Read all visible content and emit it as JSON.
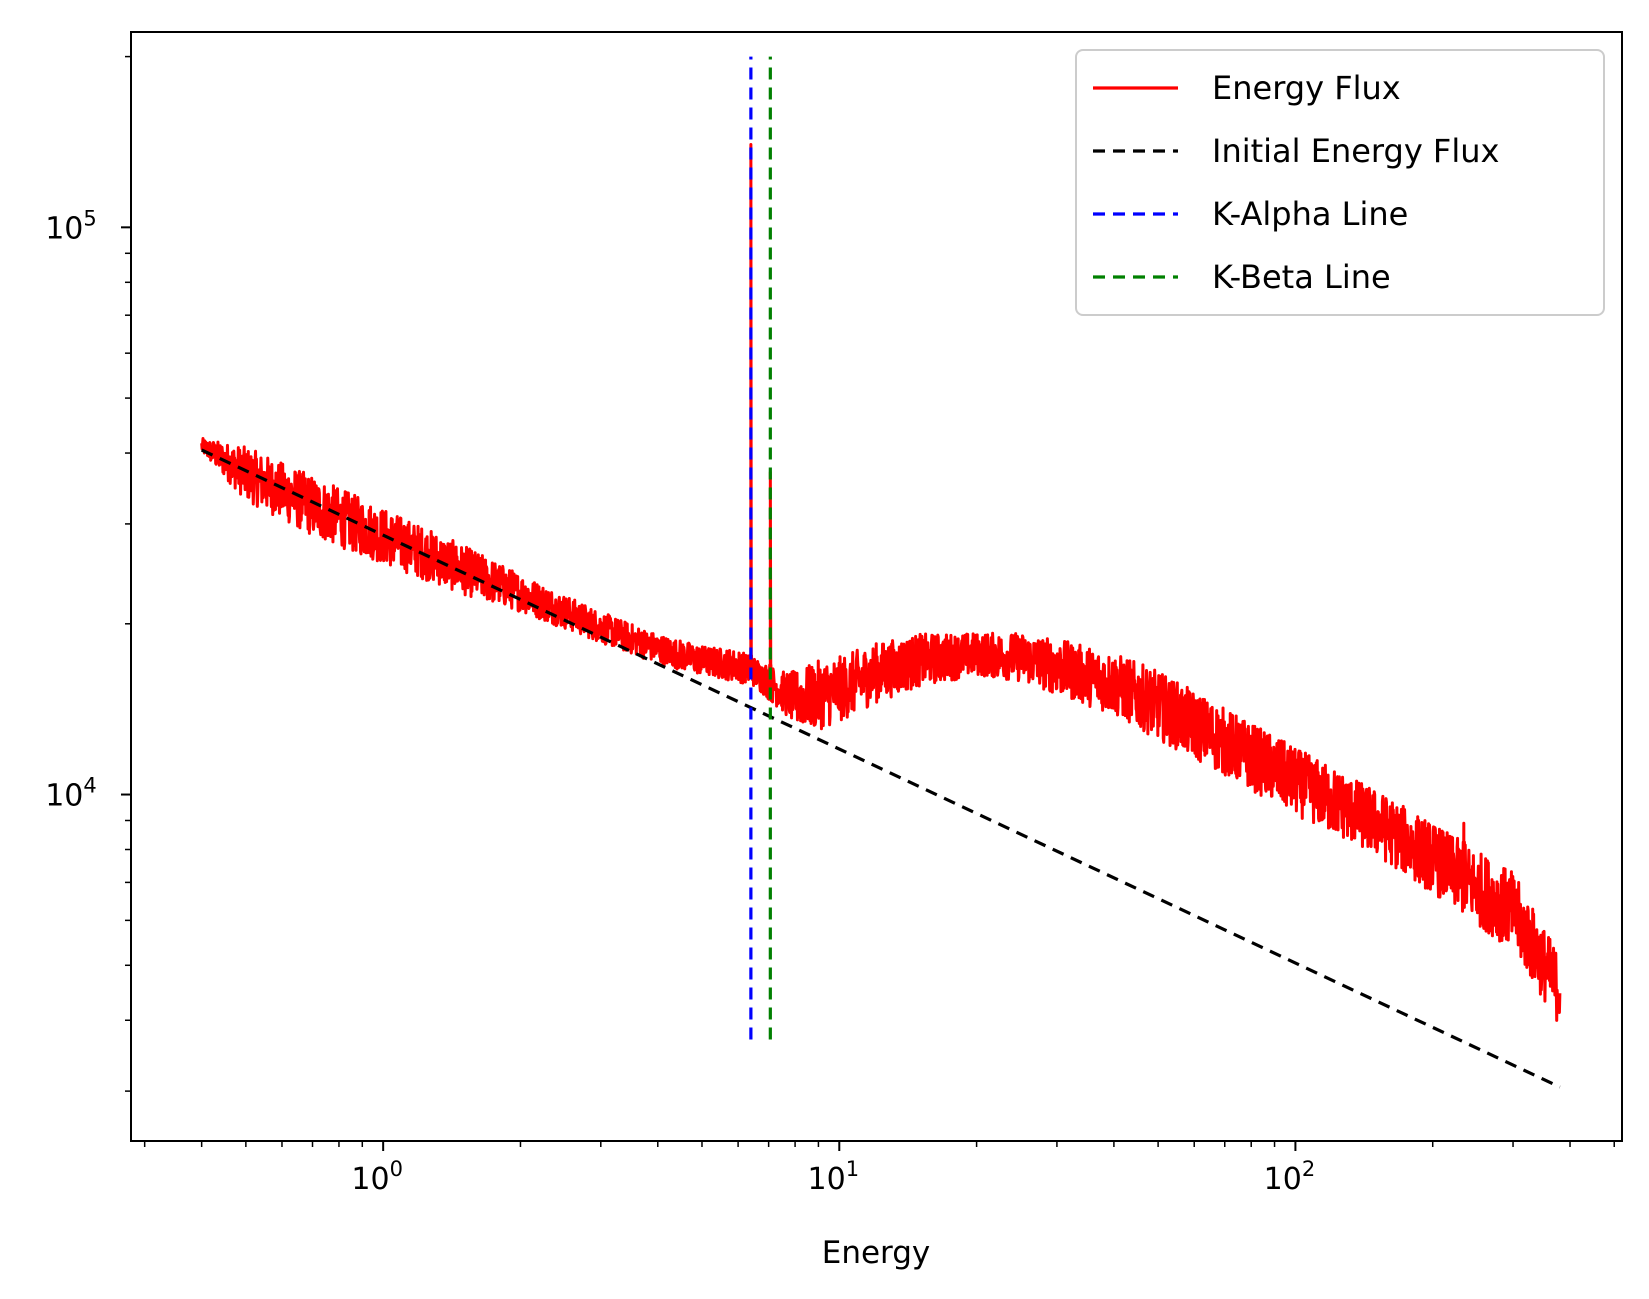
{
  "chart_data": {
    "type": "line",
    "xlabel": "Energy",
    "ylabel": "",
    "xscale": "log",
    "yscale": "log",
    "xlim": [
      0.28,
      520
    ],
    "ylim": [
      2450,
      221000
    ],
    "grid": false,
    "legend_position": "top-right",
    "x_ticks": [
      {
        "value": 1,
        "base": "10",
        "exp": "0"
      },
      {
        "value": 10,
        "base": "10",
        "exp": "1"
      },
      {
        "value": 100,
        "base": "10",
        "exp": "2"
      }
    ],
    "y_ticks": [
      {
        "value": 10000,
        "base": "10",
        "exp": "4"
      },
      {
        "value": 100000,
        "base": "10",
        "exp": "5"
      }
    ],
    "series": [
      {
        "name": "Energy Flux",
        "color": "#ff0000",
        "style": "solid",
        "envelope": {
          "x": [
            0.4,
            0.5,
            0.7,
            1.0,
            1.5,
            2.0,
            3.0,
            4.0,
            5.0,
            6.0,
            6.5,
            7.5,
            8.0,
            9.0,
            10,
            12,
            15,
            20,
            25,
            30,
            40,
            50,
            70,
            100,
            150,
            200,
            300,
            380
          ],
          "lo": [
            40000,
            33000,
            28500,
            25500,
            22500,
            21000,
            18500,
            17000,
            16200,
            15800,
            15500,
            14000,
            13200,
            13000,
            13400,
            14500,
            15500,
            16200,
            15800,
            15000,
            13800,
            12500,
            10800,
            9200,
            7800,
            6700,
            5300,
            3900
          ],
          "hi": [
            42500,
            41000,
            36500,
            32000,
            27500,
            24500,
            21000,
            19200,
            18300,
            18000,
            17500,
            16500,
            16500,
            17200,
            17500,
            18500,
            19200,
            19300,
            19300,
            18800,
            17800,
            16500,
            14200,
            12100,
            10200,
            8900,
            7300,
            5200
          ]
        },
        "peaks": [
          {
            "x": 6.4,
            "y": 140000
          },
          {
            "x": 7.06,
            "y": 37000
          },
          {
            "x": 234,
            "y": 8900
          }
        ]
      },
      {
        "name": "Initial Energy Flux",
        "color": "#000000",
        "style": "dashed",
        "x": [
          0.4,
          380
        ],
        "y": [
          40500,
          3050
        ]
      },
      {
        "name": "K-Alpha Line",
        "color": "#0000ff",
        "style": "dashed",
        "x": [
          6.4,
          6.4
        ],
        "y": [
          3700,
          200000
        ]
      },
      {
        "name": "K-Beta Line",
        "color": "#008000",
        "style": "dashed",
        "x": [
          7.06,
          7.06
        ],
        "y": [
          3700,
          200000
        ]
      }
    ]
  }
}
